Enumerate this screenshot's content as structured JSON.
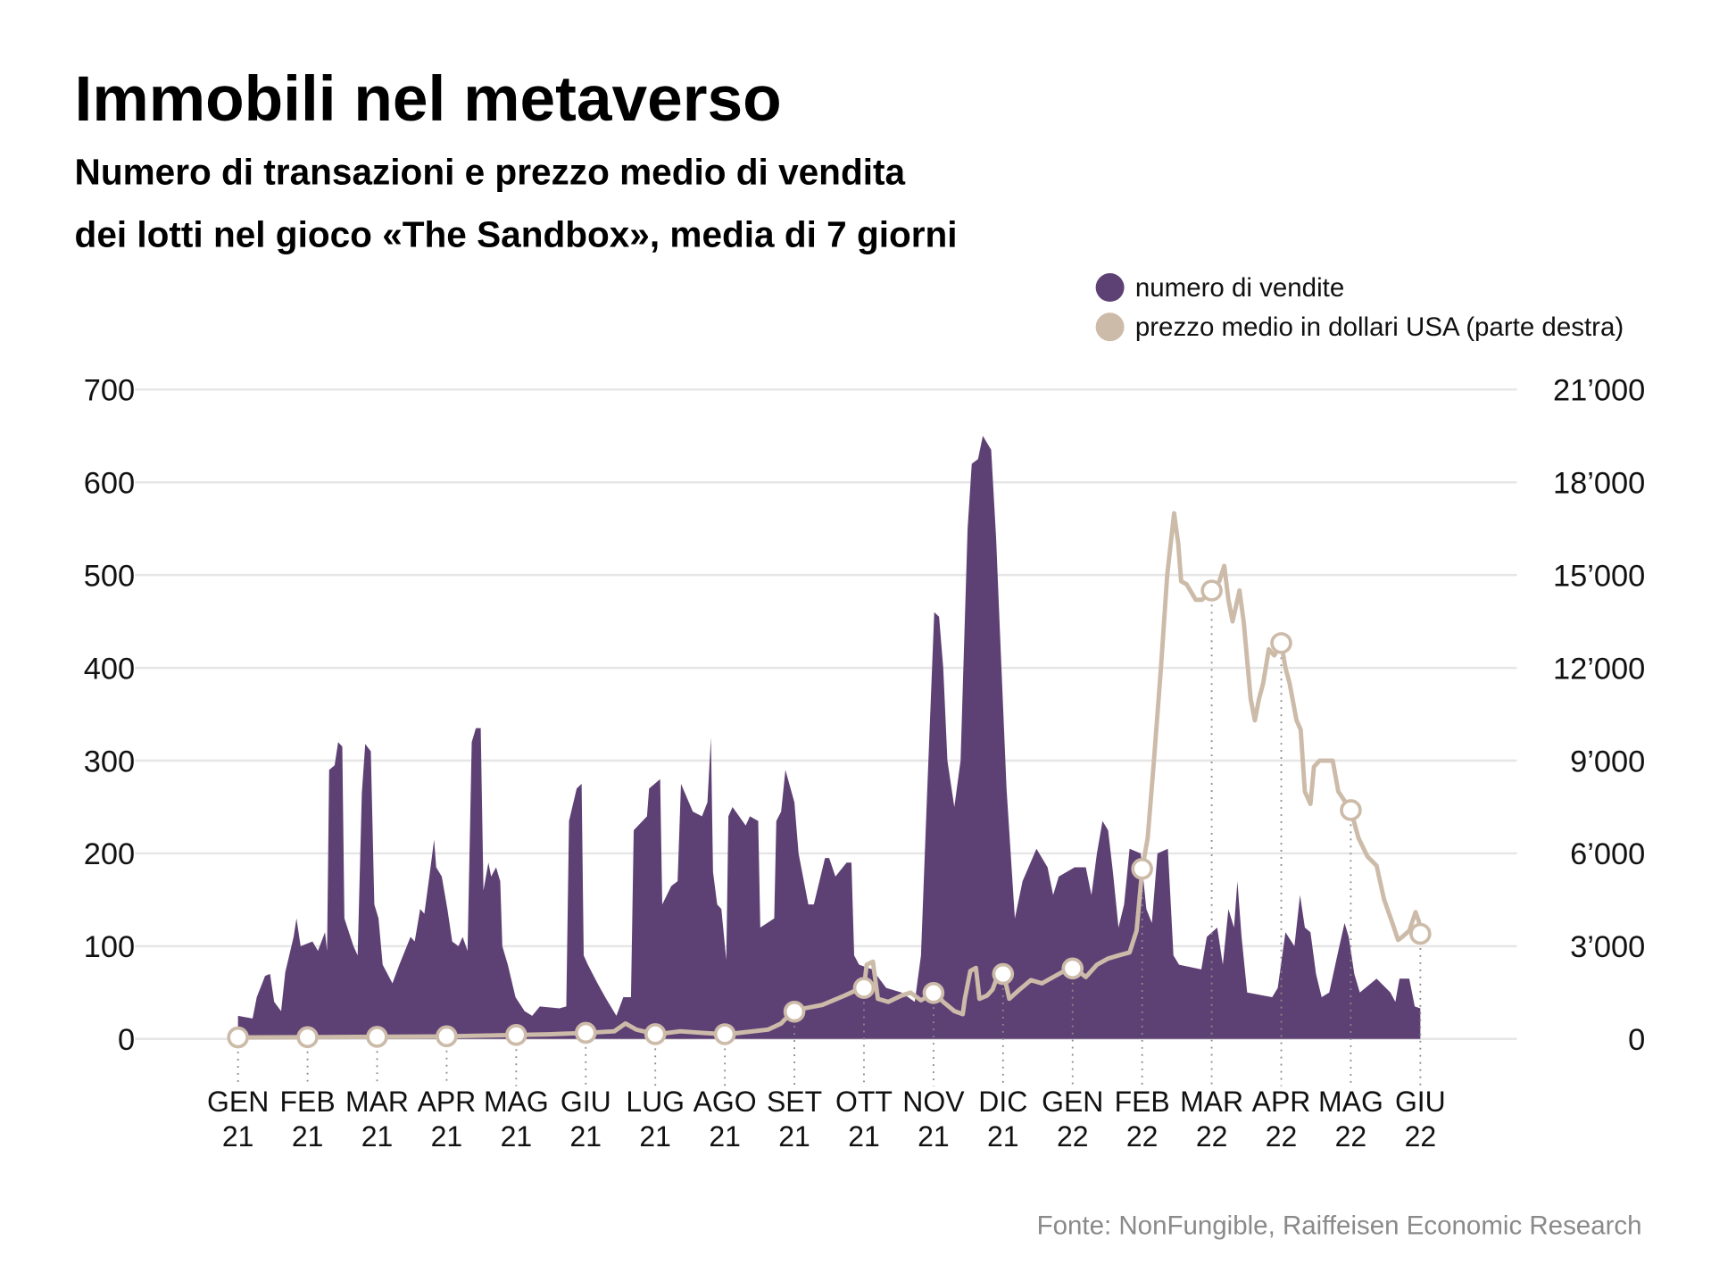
{
  "title": "Immobili nel metaverso",
  "subtitle_line1": "Numero di transazioni e prezzo medio di vendita",
  "subtitle_line2": "dei lotti nel gioco «The Sandbox», media di 7 giorni",
  "source": "Fonte: NonFungible, Raiffeisen Economic Research",
  "colors": {
    "sales": "#5e4174",
    "price": "#cdbba9",
    "grid": "#e6e6e6"
  },
  "chart_data": {
    "type": "area",
    "title": "Immobili nel metaverso",
    "legend": [
      {
        "label": "numero di vendite",
        "color": "#5e4174"
      },
      {
        "label": "prezzo medio in dollari USA (parte destra)",
        "color": "#cdbba9"
      }
    ],
    "legend_placement": "top-right",
    "grid": true,
    "x_unit": "months since Jan 2021",
    "xlim": [
      0,
      17
    ],
    "x_ticks": [
      [
        "GEN",
        "21"
      ],
      [
        "FEB",
        "21"
      ],
      [
        "MAR",
        "21"
      ],
      [
        "APR",
        "21"
      ],
      [
        "MAG",
        "21"
      ],
      [
        "GIU",
        "21"
      ],
      [
        "LUG",
        "21"
      ],
      [
        "AGO",
        "21"
      ],
      [
        "SET",
        "21"
      ],
      [
        "OTT",
        "21"
      ],
      [
        "NOV",
        "21"
      ],
      [
        "DIC",
        "21"
      ],
      [
        "GEN",
        "22"
      ],
      [
        "FEB",
        "22"
      ],
      [
        "MAR",
        "22"
      ],
      [
        "APR",
        "22"
      ],
      [
        "MAG",
        "22"
      ],
      [
        "GIU",
        "22"
      ]
    ],
    "y_left": {
      "lim": [
        0,
        700
      ],
      "ticks": [
        "0",
        "100",
        "200",
        "300",
        "400",
        "500",
        "600",
        "700"
      ],
      "tick_values": [
        0,
        100,
        200,
        300,
        400,
        500,
        600,
        700
      ]
    },
    "y_right": {
      "lim": [
        0,
        21000
      ],
      "ticks": [
        "0",
        "3’000",
        "6’000",
        "9’000",
        "12’000",
        "15’000",
        "18’000",
        "21’000"
      ]
    },
    "series": [
      {
        "name": "numero di vendite",
        "type": "area",
        "axis": "left",
        "points": [
          [
            0,
            25
          ],
          [
            0.21,
            22
          ],
          [
            0.27,
            45
          ],
          [
            0.39,
            68
          ],
          [
            0.46,
            70
          ],
          [
            0.52,
            40
          ],
          [
            0.62,
            30
          ],
          [
            0.68,
            72
          ],
          [
            0.8,
            110
          ],
          [
            0.84,
            130
          ],
          [
            0.9,
            100
          ],
          [
            1.07,
            105
          ],
          [
            1.15,
            95
          ],
          [
            1.25,
            115
          ],
          [
            1.28,
            95
          ],
          [
            1.31,
            290
          ],
          [
            1.39,
            295
          ],
          [
            1.44,
            320
          ],
          [
            1.5,
            315
          ],
          [
            1.53,
            130
          ],
          [
            1.66,
            100
          ],
          [
            1.72,
            90
          ],
          [
            1.78,
            265
          ],
          [
            1.83,
            318
          ],
          [
            1.91,
            310
          ],
          [
            1.96,
            145
          ],
          [
            2.02,
            130
          ],
          [
            2.08,
            80
          ],
          [
            2.22,
            60
          ],
          [
            2.32,
            80
          ],
          [
            2.48,
            110
          ],
          [
            2.54,
            105
          ],
          [
            2.62,
            140
          ],
          [
            2.68,
            135
          ],
          [
            2.76,
            180
          ],
          [
            2.82,
            215
          ],
          [
            2.85,
            185
          ],
          [
            2.93,
            175
          ],
          [
            3.01,
            140
          ],
          [
            3.08,
            105
          ],
          [
            3.17,
            100
          ],
          [
            3.23,
            110
          ],
          [
            3.3,
            95
          ],
          [
            3.36,
            320
          ],
          [
            3.42,
            335
          ],
          [
            3.49,
            335
          ],
          [
            3.53,
            160
          ],
          [
            3.6,
            190
          ],
          [
            3.64,
            175
          ],
          [
            3.71,
            185
          ],
          [
            3.77,
            170
          ],
          [
            3.8,
            100
          ],
          [
            3.88,
            80
          ],
          [
            3.99,
            45
          ],
          [
            4.12,
            30
          ],
          [
            4.23,
            25
          ],
          [
            4.34,
            35
          ],
          [
            4.62,
            33
          ],
          [
            4.72,
            35
          ],
          [
            4.76,
            235
          ],
          [
            4.87,
            270
          ],
          [
            4.94,
            275
          ],
          [
            4.97,
            90
          ],
          [
            5.03,
            80
          ],
          [
            5.17,
            60
          ],
          [
            5.28,
            45
          ],
          [
            5.44,
            25
          ],
          [
            5.54,
            45
          ],
          [
            5.65,
            45
          ],
          [
            5.69,
            225
          ],
          [
            5.88,
            240
          ],
          [
            5.91,
            270
          ],
          [
            6.07,
            280
          ],
          [
            6.1,
            145
          ],
          [
            6.23,
            165
          ],
          [
            6.32,
            170
          ],
          [
            6.37,
            275
          ],
          [
            6.54,
            245
          ],
          [
            6.67,
            240
          ],
          [
            6.75,
            255
          ],
          [
            6.8,
            325
          ],
          [
            6.83,
            180
          ],
          [
            6.89,
            145
          ],
          [
            6.95,
            140
          ],
          [
            7.02,
            85
          ],
          [
            7.05,
            240
          ],
          [
            7.11,
            250
          ],
          [
            7.3,
            230
          ],
          [
            7.36,
            240
          ],
          [
            7.48,
            235
          ],
          [
            7.51,
            120
          ],
          [
            7.71,
            130
          ],
          [
            7.74,
            235
          ],
          [
            7.81,
            245
          ],
          [
            7.87,
            290
          ],
          [
            8.0,
            255
          ],
          [
            8.06,
            200
          ],
          [
            8.2,
            145
          ],
          [
            8.28,
            145
          ],
          [
            8.44,
            195
          ],
          [
            8.5,
            195
          ],
          [
            8.59,
            175
          ],
          [
            8.75,
            190
          ],
          [
            8.82,
            190
          ],
          [
            8.86,
            90
          ],
          [
            8.93,
            80
          ],
          [
            9.12,
            75
          ],
          [
            9.32,
            55
          ],
          [
            9.54,
            50
          ],
          [
            9.73,
            40
          ],
          [
            9.82,
            90
          ],
          [
            9.9,
            250
          ],
          [
            10.01,
            460
          ],
          [
            10.08,
            455
          ],
          [
            10.14,
            400
          ],
          [
            10.2,
            300
          ],
          [
            10.3,
            250
          ],
          [
            10.39,
            300
          ],
          [
            10.49,
            550
          ],
          [
            10.55,
            620
          ],
          [
            10.64,
            625
          ],
          [
            10.71,
            650
          ],
          [
            10.83,
            635
          ],
          [
            10.9,
            540
          ],
          [
            10.96,
            430
          ],
          [
            11.05,
            270
          ],
          [
            11.17,
            130
          ],
          [
            11.28,
            170
          ],
          [
            11.48,
            205
          ],
          [
            11.64,
            185
          ],
          [
            11.72,
            155
          ],
          [
            11.8,
            175
          ],
          [
            12.03,
            185
          ],
          [
            12.19,
            185
          ],
          [
            12.27,
            155
          ],
          [
            12.35,
            200
          ],
          [
            12.43,
            235
          ],
          [
            12.51,
            225
          ],
          [
            12.58,
            180
          ],
          [
            12.66,
            120
          ],
          [
            12.74,
            145
          ],
          [
            12.82,
            205
          ],
          [
            12.98,
            200
          ],
          [
            13.06,
            140
          ],
          [
            13.14,
            125
          ],
          [
            13.22,
            200
          ],
          [
            13.37,
            205
          ],
          [
            13.45,
            90
          ],
          [
            13.53,
            80
          ],
          [
            13.85,
            75
          ],
          [
            13.93,
            110
          ],
          [
            14.08,
            120
          ],
          [
            14.16,
            80
          ],
          [
            14.24,
            140
          ],
          [
            14.32,
            120
          ],
          [
            14.37,
            170
          ],
          [
            14.43,
            110
          ],
          [
            14.51,
            50
          ],
          [
            14.87,
            45
          ],
          [
            14.95,
            55
          ],
          [
            15.06,
            115
          ],
          [
            15.19,
            100
          ],
          [
            15.27,
            155
          ],
          [
            15.34,
            120
          ],
          [
            15.42,
            115
          ],
          [
            15.5,
            70
          ],
          [
            15.58,
            45
          ],
          [
            15.69,
            50
          ],
          [
            15.82,
            95
          ],
          [
            15.91,
            125
          ],
          [
            15.97,
            110
          ],
          [
            16.05,
            70
          ],
          [
            16.13,
            50
          ],
          [
            16.37,
            65
          ],
          [
            16.57,
            50
          ],
          [
            16.64,
            40
          ],
          [
            16.7,
            65
          ],
          [
            16.84,
            65
          ],
          [
            16.92,
            35
          ],
          [
            17.0,
            33
          ]
        ]
      },
      {
        "name": "prezzo medio in dollari USA (parte destra)",
        "type": "line",
        "axis": "right",
        "points": [
          [
            0,
            50
          ],
          [
            1.31,
            60
          ],
          [
            2.89,
            80
          ],
          [
            4.46,
            150
          ],
          [
            5.02,
            200
          ],
          [
            5.41,
            250
          ],
          [
            5.57,
            500
          ],
          [
            5.73,
            300
          ],
          [
            6.01,
            150
          ],
          [
            6.36,
            250
          ],
          [
            6.67,
            200
          ],
          [
            7.02,
            150
          ],
          [
            7.62,
            300
          ],
          [
            7.81,
            500
          ],
          [
            7.87,
            650
          ],
          [
            8.01,
            900
          ],
          [
            8.17,
            1000
          ],
          [
            8.4,
            1100
          ],
          [
            8.72,
            1400
          ],
          [
            8.91,
            1600
          ],
          [
            9.0,
            1650
          ],
          [
            9.04,
            2400
          ],
          [
            9.13,
            2500
          ],
          [
            9.2,
            1300
          ],
          [
            9.35,
            1200
          ],
          [
            9.54,
            1400
          ],
          [
            9.67,
            1500
          ],
          [
            9.82,
            1250
          ],
          [
            10.01,
            1500
          ],
          [
            10.14,
            1200
          ],
          [
            10.3,
            900
          ],
          [
            10.42,
            800
          ],
          [
            10.45,
            1300
          ],
          [
            10.53,
            2200
          ],
          [
            10.61,
            2300
          ],
          [
            10.66,
            1300
          ],
          [
            10.77,
            1400
          ],
          [
            10.85,
            1600
          ],
          [
            10.93,
            2100
          ],
          [
            11.01,
            2100
          ],
          [
            11.09,
            1300
          ],
          [
            11.24,
            1600
          ],
          [
            11.4,
            1900
          ],
          [
            11.56,
            1800
          ],
          [
            11.72,
            2000
          ],
          [
            11.88,
            2200
          ],
          [
            12.03,
            2300
          ],
          [
            12.19,
            2000
          ],
          [
            12.35,
            2400
          ],
          [
            12.51,
            2600
          ],
          [
            12.66,
            2700
          ],
          [
            12.82,
            2800
          ],
          [
            12.92,
            3500
          ],
          [
            13.0,
            5500
          ],
          [
            13.08,
            6500
          ],
          [
            13.17,
            9000
          ],
          [
            13.27,
            12000
          ],
          [
            13.36,
            15000
          ],
          [
            13.46,
            17000
          ],
          [
            13.52,
            16000
          ],
          [
            13.56,
            14800
          ],
          [
            13.64,
            14700
          ],
          [
            13.77,
            14200
          ],
          [
            13.86,
            14200
          ],
          [
            14.0,
            14500
          ],
          [
            14.11,
            14800
          ],
          [
            14.18,
            15300
          ],
          [
            14.24,
            14200
          ],
          [
            14.3,
            13500
          ],
          [
            14.4,
            14500
          ],
          [
            14.46,
            13500
          ],
          [
            14.56,
            11000
          ],
          [
            14.62,
            10300
          ],
          [
            14.68,
            11000
          ],
          [
            14.74,
            11500
          ],
          [
            14.82,
            12600
          ],
          [
            14.9,
            12400
          ],
          [
            15.0,
            12800
          ],
          [
            15.06,
            12000
          ],
          [
            15.12,
            11500
          ],
          [
            15.22,
            10300
          ],
          [
            15.28,
            10000
          ],
          [
            15.34,
            8000
          ],
          [
            15.42,
            7600
          ],
          [
            15.47,
            8800
          ],
          [
            15.55,
            9000
          ],
          [
            15.63,
            9000
          ],
          [
            15.74,
            9000
          ],
          [
            15.82,
            8000
          ],
          [
            16.0,
            7400
          ],
          [
            16.11,
            6500
          ],
          [
            16.24,
            5900
          ],
          [
            16.37,
            5600
          ],
          [
            16.48,
            4500
          ],
          [
            16.59,
            3800
          ],
          [
            16.68,
            3200
          ],
          [
            16.74,
            3300
          ],
          [
            16.84,
            3500
          ],
          [
            16.93,
            4100
          ],
          [
            16.98,
            3800
          ],
          [
            17.0,
            3400
          ]
        ]
      }
    ]
  }
}
